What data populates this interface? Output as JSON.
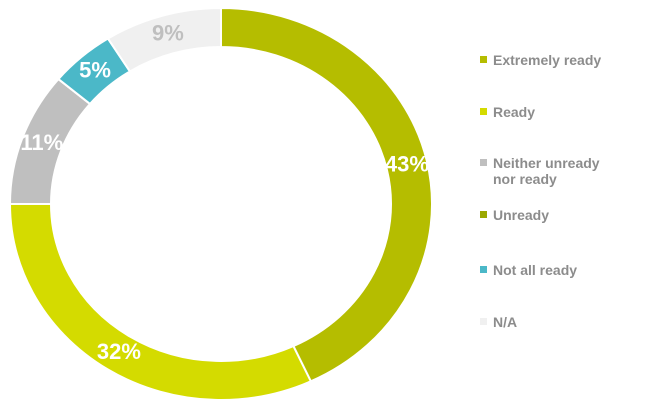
{
  "chart_data": {
    "type": "donut",
    "categories": [
      "Extremely ready",
      "Ready",
      "Neither unready nor ready",
      "Unready",
      "Not all ready",
      "N/A"
    ],
    "values": [
      43,
      32,
      11,
      0,
      5,
      9
    ],
    "value_labels": [
      "43%",
      "32%",
      "11%",
      null,
      "5%",
      "9%"
    ],
    "colors": [
      "#b5bd00",
      "#d4db00",
      "#bfbfbf",
      "#9aa800",
      "#4bb8c8",
      "#f0f0f0"
    ],
    "legend": "right"
  }
}
